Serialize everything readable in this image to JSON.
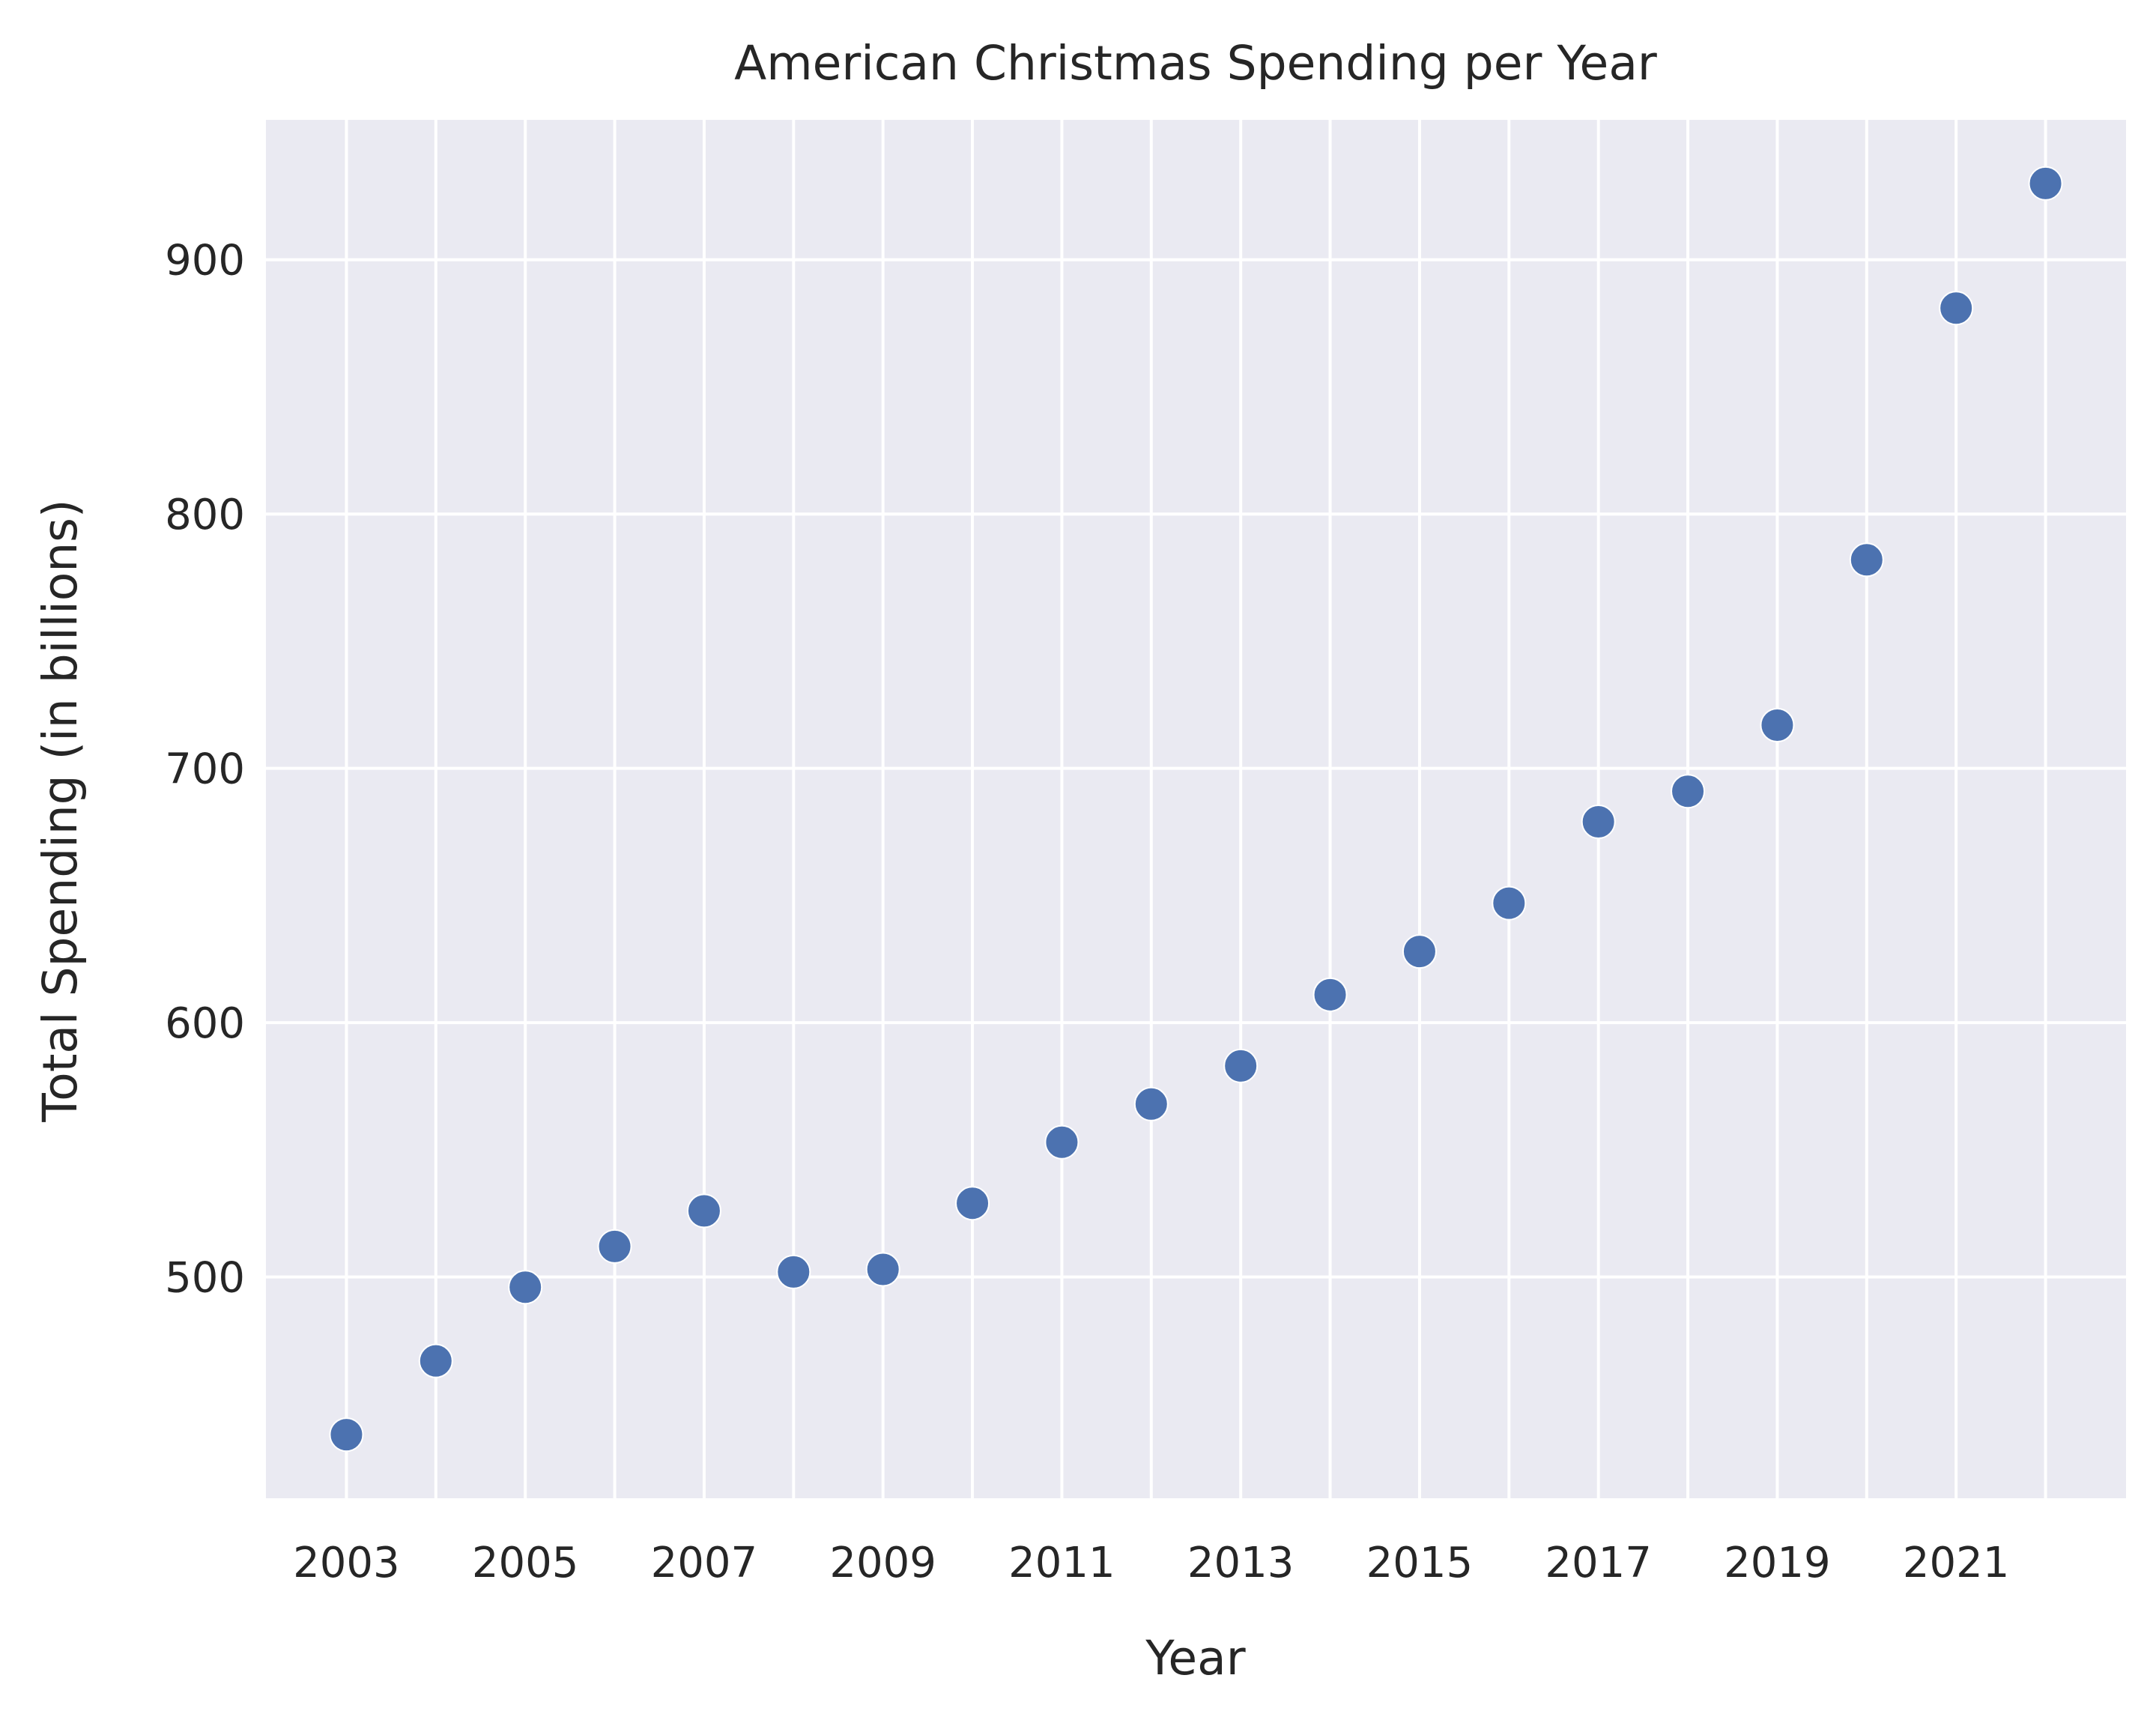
{
  "chart_data": {
    "type": "scatter",
    "title": "American Christmas Spending per Year",
    "xlabel": "Year",
    "ylabel": "Total Spending (in billions)",
    "x": [
      2003,
      2004,
      2005,
      2006,
      2007,
      2008,
      2009,
      2010,
      2011,
      2012,
      2013,
      2014,
      2015,
      2016,
      2017,
      2018,
      2019,
      2020,
      2021,
      2022
    ],
    "y": [
      438,
      467,
      496,
      512,
      526,
      502,
      503,
      529,
      553,
      568,
      583,
      611,
      628,
      647,
      679,
      691,
      717,
      782,
      881,
      930
    ],
    "xlim": [
      2002.1,
      2022.9
    ],
    "ylim": [
      413,
      955
    ],
    "xticks": [
      "2003",
      "2005",
      "2007",
      "2009",
      "2011",
      "2013",
      "2015",
      "2017",
      "2019",
      "2021"
    ],
    "yticks": [
      "500",
      "600",
      "700",
      "800",
      "900"
    ],
    "grid": true,
    "colors": {
      "marker": "#4c72b0",
      "plot_background": "#eaeaf2",
      "grid": "#ffffff",
      "text": "#262626"
    }
  }
}
